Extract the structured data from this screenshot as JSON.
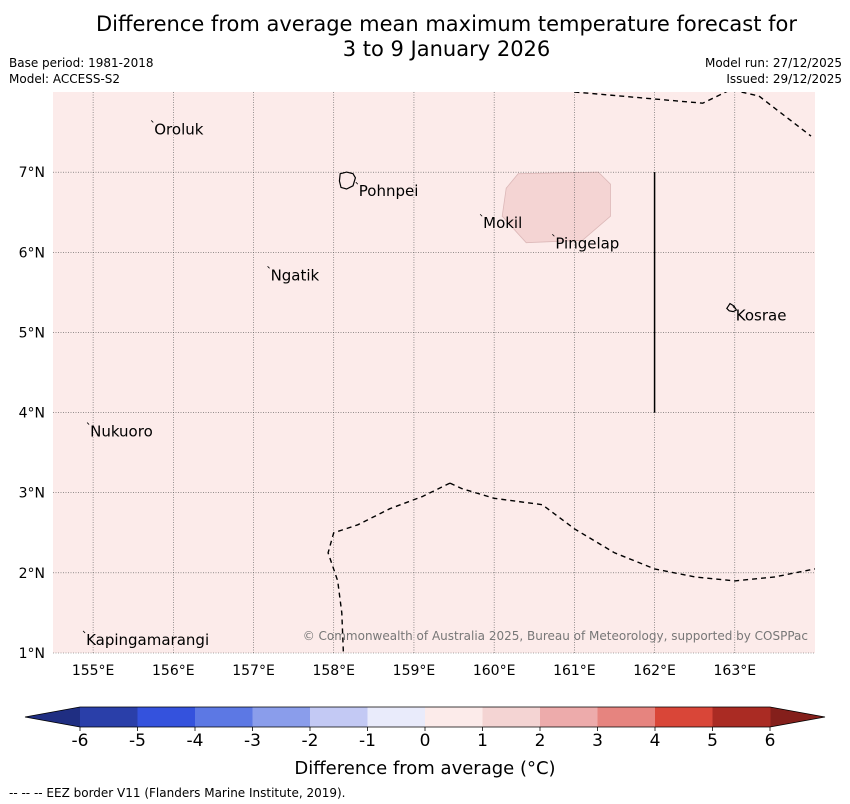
{
  "title": {
    "line1": "Difference from average mean maximum temperature forecast for",
    "line2": "3 to 9 January 2026"
  },
  "meta": {
    "base_period": "Base period: 1981-2018",
    "model": "Model: ACCESS-S2",
    "model_run": "Model run: 27/12/2025",
    "issued": "Issued: 29/12/2025"
  },
  "map": {
    "lon_range": [
      154.5,
      164.0
    ],
    "lat_range": [
      1.0,
      8.0
    ],
    "lon_ticks": [
      {
        "value": 155,
        "label": "155°E"
      },
      {
        "value": 156,
        "label": "156°E"
      },
      {
        "value": 157,
        "label": "157°E"
      },
      {
        "value": 158,
        "label": "158°E"
      },
      {
        "value": 159,
        "label": "159°E"
      },
      {
        "value": 160,
        "label": "160°E"
      },
      {
        "value": 161,
        "label": "161°E"
      },
      {
        "value": 162,
        "label": "162°E"
      },
      {
        "value": 163,
        "label": "163°E"
      }
    ],
    "lat_ticks": [
      {
        "value": 7,
        "label": "7°N"
      },
      {
        "value": 6,
        "label": "6°N"
      },
      {
        "value": 5,
        "label": "5°N"
      },
      {
        "value": 4,
        "label": "4°N"
      },
      {
        "value": 3,
        "label": "3°N"
      },
      {
        "value": 2,
        "label": "2°N"
      },
      {
        "value": 1,
        "label": "1°N"
      }
    ],
    "places": [
      {
        "name": "Oroluk",
        "lon": 155.75,
        "lat": 7.62
      },
      {
        "name": "Pohnpei",
        "lon": 158.3,
        "lat": 6.85
      },
      {
        "name": "Mokil",
        "lon": 159.85,
        "lat": 6.45
      },
      {
        "name": "Pingelap",
        "lon": 160.75,
        "lat": 6.2
      },
      {
        "name": "Ngatik",
        "lon": 157.2,
        "lat": 5.8
      },
      {
        "name": "Kosrae",
        "lon": 163.0,
        "lat": 5.3
      },
      {
        "name": "Nukuoro",
        "lon": 154.95,
        "lat": 3.85
      },
      {
        "name": "Kapingamarangi",
        "lon": 154.9,
        "lat": 1.25
      }
    ],
    "background_anomaly": 0.5,
    "regions": [
      {
        "anomaly": 1.5,
        "polygon": [
          [
            160.3,
            6.98
          ],
          [
            161.3,
            7.0
          ],
          [
            161.45,
            6.85
          ],
          [
            161.45,
            6.45
          ],
          [
            161.1,
            6.15
          ],
          [
            160.4,
            6.12
          ],
          [
            160.1,
            6.45
          ],
          [
            160.15,
            6.8
          ]
        ]
      }
    ],
    "eez_borders": [
      [
        [
          161.0,
          8.0
        ],
        [
          161.8,
          7.93
        ],
        [
          162.6,
          7.86
        ],
        [
          162.95,
          8.03
        ],
        [
          163.3,
          7.95
        ],
        [
          163.95,
          7.45
        ]
      ],
      [
        [
          159.45,
          3.12
        ],
        [
          159.6,
          3.05
        ],
        [
          160.0,
          2.93
        ],
        [
          160.6,
          2.85
        ],
        [
          161.0,
          2.55
        ],
        [
          161.5,
          2.25
        ],
        [
          162.0,
          2.05
        ],
        [
          162.5,
          1.95
        ],
        [
          163.0,
          1.9
        ],
        [
          163.5,
          1.95
        ],
        [
          164.0,
          2.05
        ]
      ],
      [
        [
          159.45,
          3.12
        ],
        [
          159.1,
          2.95
        ],
        [
          158.7,
          2.8
        ],
        [
          158.3,
          2.6
        ],
        [
          158.0,
          2.5
        ],
        [
          157.93,
          2.25
        ],
        [
          158.05,
          1.9
        ],
        [
          158.1,
          1.5
        ],
        [
          158.12,
          1.0
        ]
      ]
    ],
    "coastlines": [
      {
        "name": "Pohnpei",
        "polygon": [
          [
            158.08,
            6.98
          ],
          [
            158.12,
            6.99
          ],
          [
            158.16,
            7.0
          ],
          [
            158.24,
            6.98
          ],
          [
            158.27,
            6.93
          ],
          [
            158.24,
            6.83
          ],
          [
            158.16,
            6.79
          ],
          [
            158.09,
            6.81
          ],
          [
            158.07,
            6.89
          ]
        ]
      },
      {
        "name": "Kosrae",
        "polygon": [
          [
            162.9,
            5.3
          ],
          [
            162.94,
            5.36
          ],
          [
            162.99,
            5.33
          ],
          [
            163.02,
            5.28
          ],
          [
            162.98,
            5.26
          ],
          [
            162.93,
            5.27
          ]
        ]
      }
    ],
    "solid_line": {
      "lon": 162.0,
      "lat_start": 4.0,
      "lat_end": 7.0
    },
    "credit": "© Commonwealth of Australia 2025, Bureau of Meteorology, supported by COSPPac"
  },
  "colorbar": {
    "title": "Difference from average (°C)",
    "bounds": [
      -6,
      -5,
      -4,
      -3,
      -2,
      -1,
      0,
      1,
      2,
      3,
      4,
      5,
      6
    ],
    "labels": [
      "-6",
      "-5",
      "-4",
      "-3",
      "-2",
      "-1",
      "0",
      "1",
      "2",
      "3",
      "4",
      "5",
      "6"
    ],
    "colors": [
      "#2a3fa9",
      "#3452dd",
      "#5c78e4",
      "#8a9deb",
      "#c3c9f4",
      "#e9ebfb",
      "#fcebea",
      "#f4d4d3",
      "#edabab",
      "#e6847f",
      "#d94638",
      "#aa2b23"
    ],
    "under_color": "#1f2e82",
    "over_color": "#841f1b"
  },
  "footer": "--  --  -- EEZ border V11 (Flanders Marine Institute, 2019)."
}
